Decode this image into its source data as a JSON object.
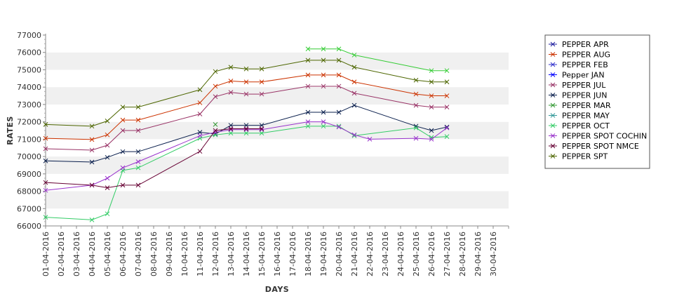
{
  "chart_data": {
    "type": "line",
    "xlabel": "DAYS",
    "ylabel": "RATES",
    "ylim": [
      66000,
      77000
    ],
    "yticks": [
      66000,
      67000,
      68000,
      69000,
      70000,
      71000,
      72000,
      73000,
      74000,
      75000,
      76000,
      77000
    ],
    "categories": [
      "01-04-2016",
      "02-04-2016",
      "03-04-2016",
      "04-04-2016",
      "05-04-2016",
      "06-04-2016",
      "07-04-2016",
      "08-04-2016",
      "09-04-2016",
      "10-04-2016",
      "11-04-2016",
      "12-04-2016",
      "13-04-2016",
      "14-04-2016",
      "15-04-2016",
      "16-04-2016",
      "17-04-2016",
      "18-04-2016",
      "19-04-2016",
      "20-04-2016",
      "21-04-2016",
      "22-04-2016",
      "23-04-2016",
      "24-04-2016",
      "25-04-2016",
      "26-04-2016",
      "27-04-2016",
      "28-04-2016",
      "29-04-2016",
      "30-04-2016"
    ],
    "grid": true,
    "legend_position": "right",
    "series": [
      {
        "name": "PEPPER APR",
        "color": "#1f1f9f",
        "values": [
          null,
          null,
          null,
          null,
          null,
          null,
          null,
          null,
          null,
          null,
          null,
          null,
          null,
          null,
          null,
          null,
          null,
          null,
          null,
          null,
          null,
          null,
          null,
          null,
          null,
          null,
          null,
          null,
          null,
          null
        ]
      },
      {
        "name": "PEPPER AUG",
        "color": "#cc3300",
        "values": [
          71050,
          null,
          null,
          70980,
          71250,
          72100,
          72100,
          null,
          null,
          null,
          73100,
          74050,
          74350,
          74300,
          74300,
          null,
          null,
          74700,
          74700,
          74700,
          74300,
          null,
          null,
          null,
          73600,
          73500,
          73500,
          null,
          null,
          null
        ]
      },
      {
        "name": "PEPPER FEB",
        "color": "#3333cc",
        "values": [
          null,
          null,
          null,
          null,
          null,
          null,
          null,
          null,
          null,
          null,
          null,
          null,
          null,
          null,
          null,
          null,
          null,
          null,
          null,
          null,
          null,
          null,
          null,
          null,
          null,
          null,
          null,
          null,
          null,
          null
        ]
      },
      {
        "name": "Pepper JAN",
        "color": "#0000ff",
        "values": [
          null,
          null,
          null,
          null,
          null,
          null,
          null,
          null,
          null,
          null,
          null,
          null,
          null,
          null,
          null,
          null,
          null,
          null,
          null,
          null,
          null,
          null,
          null,
          null,
          null,
          null,
          null,
          null,
          null,
          null
        ]
      },
      {
        "name": "PEPPER JUL",
        "color": "#993366",
        "values": [
          70450,
          null,
          null,
          70370,
          70650,
          71500,
          71500,
          null,
          null,
          null,
          72450,
          73450,
          73700,
          73600,
          73600,
          null,
          null,
          74050,
          74050,
          74050,
          73650,
          null,
          null,
          null,
          72950,
          72850,
          72850,
          null,
          null,
          null
        ]
      },
      {
        "name": "PEPPER JUN",
        "color": "#0a1f4d",
        "values": [
          69750,
          null,
          null,
          69680,
          69950,
          70280,
          70280,
          null,
          null,
          null,
          71400,
          71300,
          71800,
          71800,
          71800,
          null,
          null,
          72550,
          72550,
          72550,
          72950,
          null,
          null,
          null,
          71750,
          71500,
          71700,
          null,
          null,
          null
        ]
      },
      {
        "name": "PEPPER MAR",
        "color": "#339933",
        "values": [
          null,
          null,
          null,
          null,
          null,
          null,
          null,
          null,
          null,
          null,
          null,
          71850,
          null,
          null,
          null,
          null,
          null,
          null,
          null,
          null,
          null,
          null,
          null,
          null,
          null,
          null,
          null,
          null,
          null,
          null
        ]
      },
      {
        "name": "PEPPER MAY",
        "color": "#339999",
        "values": [
          null,
          null,
          null,
          null,
          null,
          null,
          null,
          null,
          null,
          null,
          null,
          null,
          null,
          null,
          null,
          null,
          null,
          null,
          null,
          null,
          null,
          null,
          null,
          null,
          null,
          null,
          null,
          null,
          null,
          null
        ]
      },
      {
        "name": "PEPPER OCT",
        "color": "#33cc66",
        "values": [
          66500,
          null,
          null,
          66350,
          66700,
          69200,
          69350,
          null,
          null,
          null,
          71050,
          71250,
          71350,
          71350,
          71350,
          null,
          null,
          71750,
          71750,
          71750,
          71200,
          null,
          null,
          null,
          71650,
          71100,
          71150,
          null,
          null,
          null
        ]
      },
      {
        "name": "PEPPER SPOT COCHIN",
        "color": "#9933cc",
        "values": [
          68050,
          null,
          null,
          68350,
          68750,
          69350,
          69700,
          null,
          null,
          null,
          71200,
          71400,
          71550,
          71550,
          71550,
          null,
          null,
          72000,
          72000,
          71700,
          71250,
          71000,
          null,
          null,
          71050,
          71000,
          71650,
          null,
          null,
          null
        ]
      },
      {
        "name": "PEPPER SPOT NMCE",
        "color": "#660033",
        "values": [
          68500,
          null,
          null,
          68350,
          68200,
          68350,
          68350,
          null,
          null,
          null,
          70300,
          71500,
          71600,
          71600,
          71600,
          null,
          null,
          null,
          null,
          null,
          null,
          null,
          null,
          null,
          null,
          null,
          null,
          null,
          null,
          null
        ]
      },
      {
        "name": "PEPPER SPT",
        "color": "#4d6600",
        "values": [
          71850,
          null,
          null,
          71750,
          72050,
          72850,
          72850,
          null,
          null,
          null,
          73850,
          74900,
          75150,
          75050,
          75050,
          null,
          null,
          75550,
          75550,
          75550,
          75150,
          null,
          null,
          null,
          74400,
          74300,
          74300,
          null,
          null,
          null
        ]
      },
      {
        "name": "PEPPER SPT",
        "legend": false,
        "color": "#33cc33",
        "values": [
          null,
          null,
          null,
          null,
          null,
          null,
          null,
          null,
          null,
          null,
          null,
          null,
          null,
          null,
          null,
          null,
          null,
          76200,
          76200,
          76200,
          75850,
          null,
          null,
          null,
          null,
          74950,
          74950,
          null,
          null,
          null
        ]
      }
    ]
  }
}
